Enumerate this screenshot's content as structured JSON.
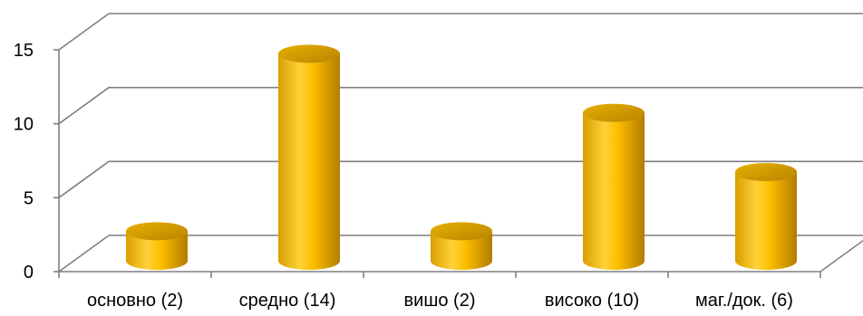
{
  "chart_data": {
    "type": "bar",
    "style": "3d-cylinder",
    "categories": [
      "основно  (2)",
      "средно  (14)",
      "вишо  (2)",
      "високо  (10)",
      "маг./док.  (6)"
    ],
    "values": [
      2,
      14,
      2,
      10,
      6
    ],
    "title": "",
    "xlabel": "",
    "ylabel": "",
    "ylim": [
      0,
      15
    ],
    "yticks": [
      "0",
      "5",
      "10",
      "15"
    ],
    "grid": true,
    "legend": "none",
    "colors": {
      "bar": "#FFC000",
      "bar_dark": "#C08A00",
      "grid": "#7F7F7F"
    }
  }
}
